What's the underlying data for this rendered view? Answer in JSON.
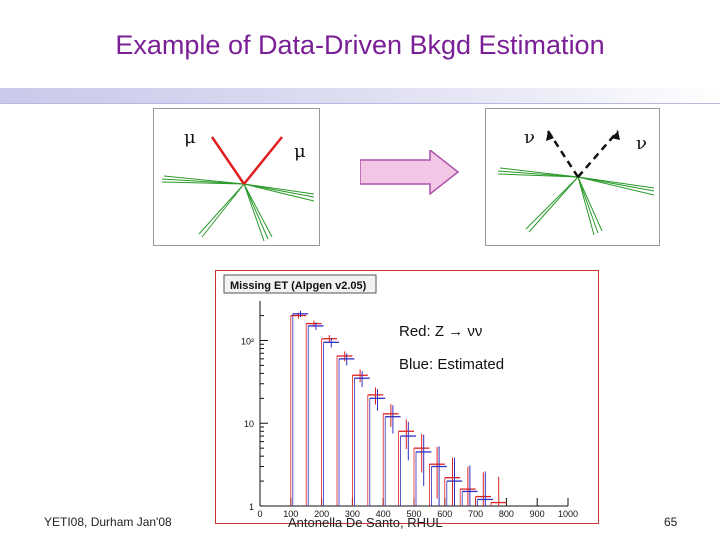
{
  "slide": {
    "title": "Example of Data-Driven Bkgd Estimation",
    "number": "65"
  },
  "diagram_left": {
    "label_left": "μ",
    "label_right": "μ"
  },
  "diagram_right": {
    "label_left": "ν",
    "label_right": "ν"
  },
  "plot": {
    "header": "Missing   ET  (Alpgen  v2.05)",
    "legend_red": "Red: Z → νν",
    "legend_blue": "Blue: Estimated",
    "y_ticks": [
      "10²",
      "10",
      "1"
    ],
    "x_ticks": [
      "0",
      "100",
      "200",
      "300",
      "400",
      "500",
      "600",
      "700",
      "800",
      "900",
      "1000"
    ]
  },
  "chart_data": {
    "type": "histogram",
    "xlim": [
      0,
      1000
    ],
    "yscale": "log",
    "ylim": [
      1,
      300
    ],
    "bin_edges": [
      0,
      50,
      100,
      150,
      200,
      250,
      300,
      350,
      400,
      450,
      500,
      550,
      600,
      650,
      700,
      750,
      800,
      850,
      900,
      950,
      1000
    ],
    "series": [
      {
        "name": "Red: Z → νν",
        "color": "#e02020",
        "values": [
          0,
          0,
          200,
          160,
          105,
          65,
          38,
          22,
          13,
          8,
          5,
          3.2,
          2.2,
          1.6,
          1.3,
          1.1,
          0,
          0,
          0,
          0
        ]
      },
      {
        "name": "Blue: Estimated",
        "color": "#3030c0",
        "values": [
          0,
          0,
          210,
          150,
          95,
          60,
          35,
          20,
          12,
          7,
          4.5,
          3,
          2,
          1.5,
          1.2,
          0,
          0,
          0,
          0,
          0
        ]
      }
    ]
  },
  "footer": {
    "left": "YETI08, Durham Jan'08",
    "center": "Antonella De Santo, RHUL"
  }
}
